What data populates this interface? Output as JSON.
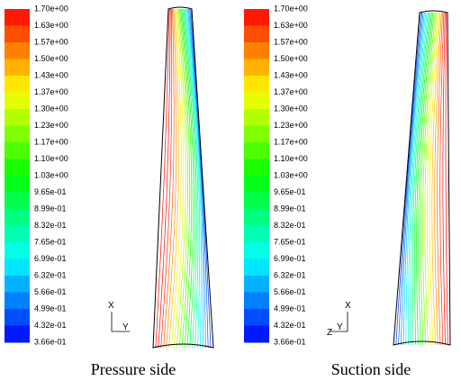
{
  "colorbar_labels": [
    "1.70e+00",
    "1.63e+00",
    "1.57e+00",
    "1.50e+00",
    "1.43e+00",
    "1.37e+00",
    "1.30e+00",
    "1.23e+00",
    "1.17e+00",
    "1.10e+00",
    "1.03e+00",
    "9.65e-01",
    "8.99e-01",
    "8.32e-01",
    "7.65e-01",
    "6.99e-01",
    "6.32e-01",
    "5.66e-01",
    "4.99e-01",
    "4.32e-01",
    "3.66e-01"
  ],
  "panels": [
    {
      "caption": "Pressure side",
      "axes": {
        "x": "X",
        "y": "Y"
      }
    },
    {
      "caption": "Suction side",
      "axes": {
        "x": "X",
        "z": "Z",
        "y": "Y"
      }
    }
  ]
}
